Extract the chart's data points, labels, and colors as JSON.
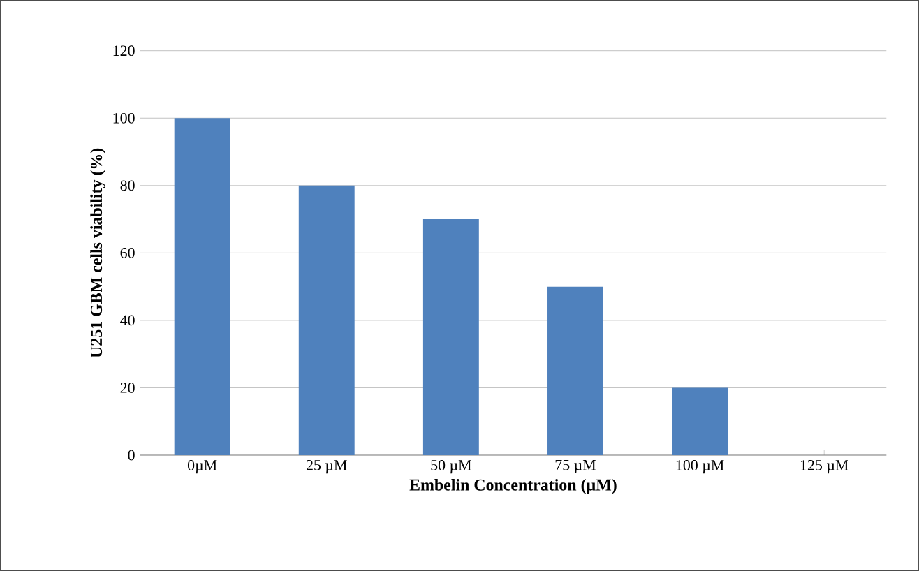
{
  "chart_data": {
    "type": "bar",
    "xlabel": "Embelin Concentration (µM)",
    "ylabel": "U251 GBM cells viability (%)",
    "categories": [
      "0µM",
      "25 µM",
      "50 µM",
      "75 µM",
      "100 µM",
      "125 µM"
    ],
    "values": [
      100,
      80,
      70,
      50,
      20,
      0
    ],
    "color": "#4f81bd",
    "ylim": [
      0,
      120
    ],
    "yticks": [
      0,
      20,
      40,
      60,
      80,
      100,
      120
    ],
    "grid": "y"
  }
}
